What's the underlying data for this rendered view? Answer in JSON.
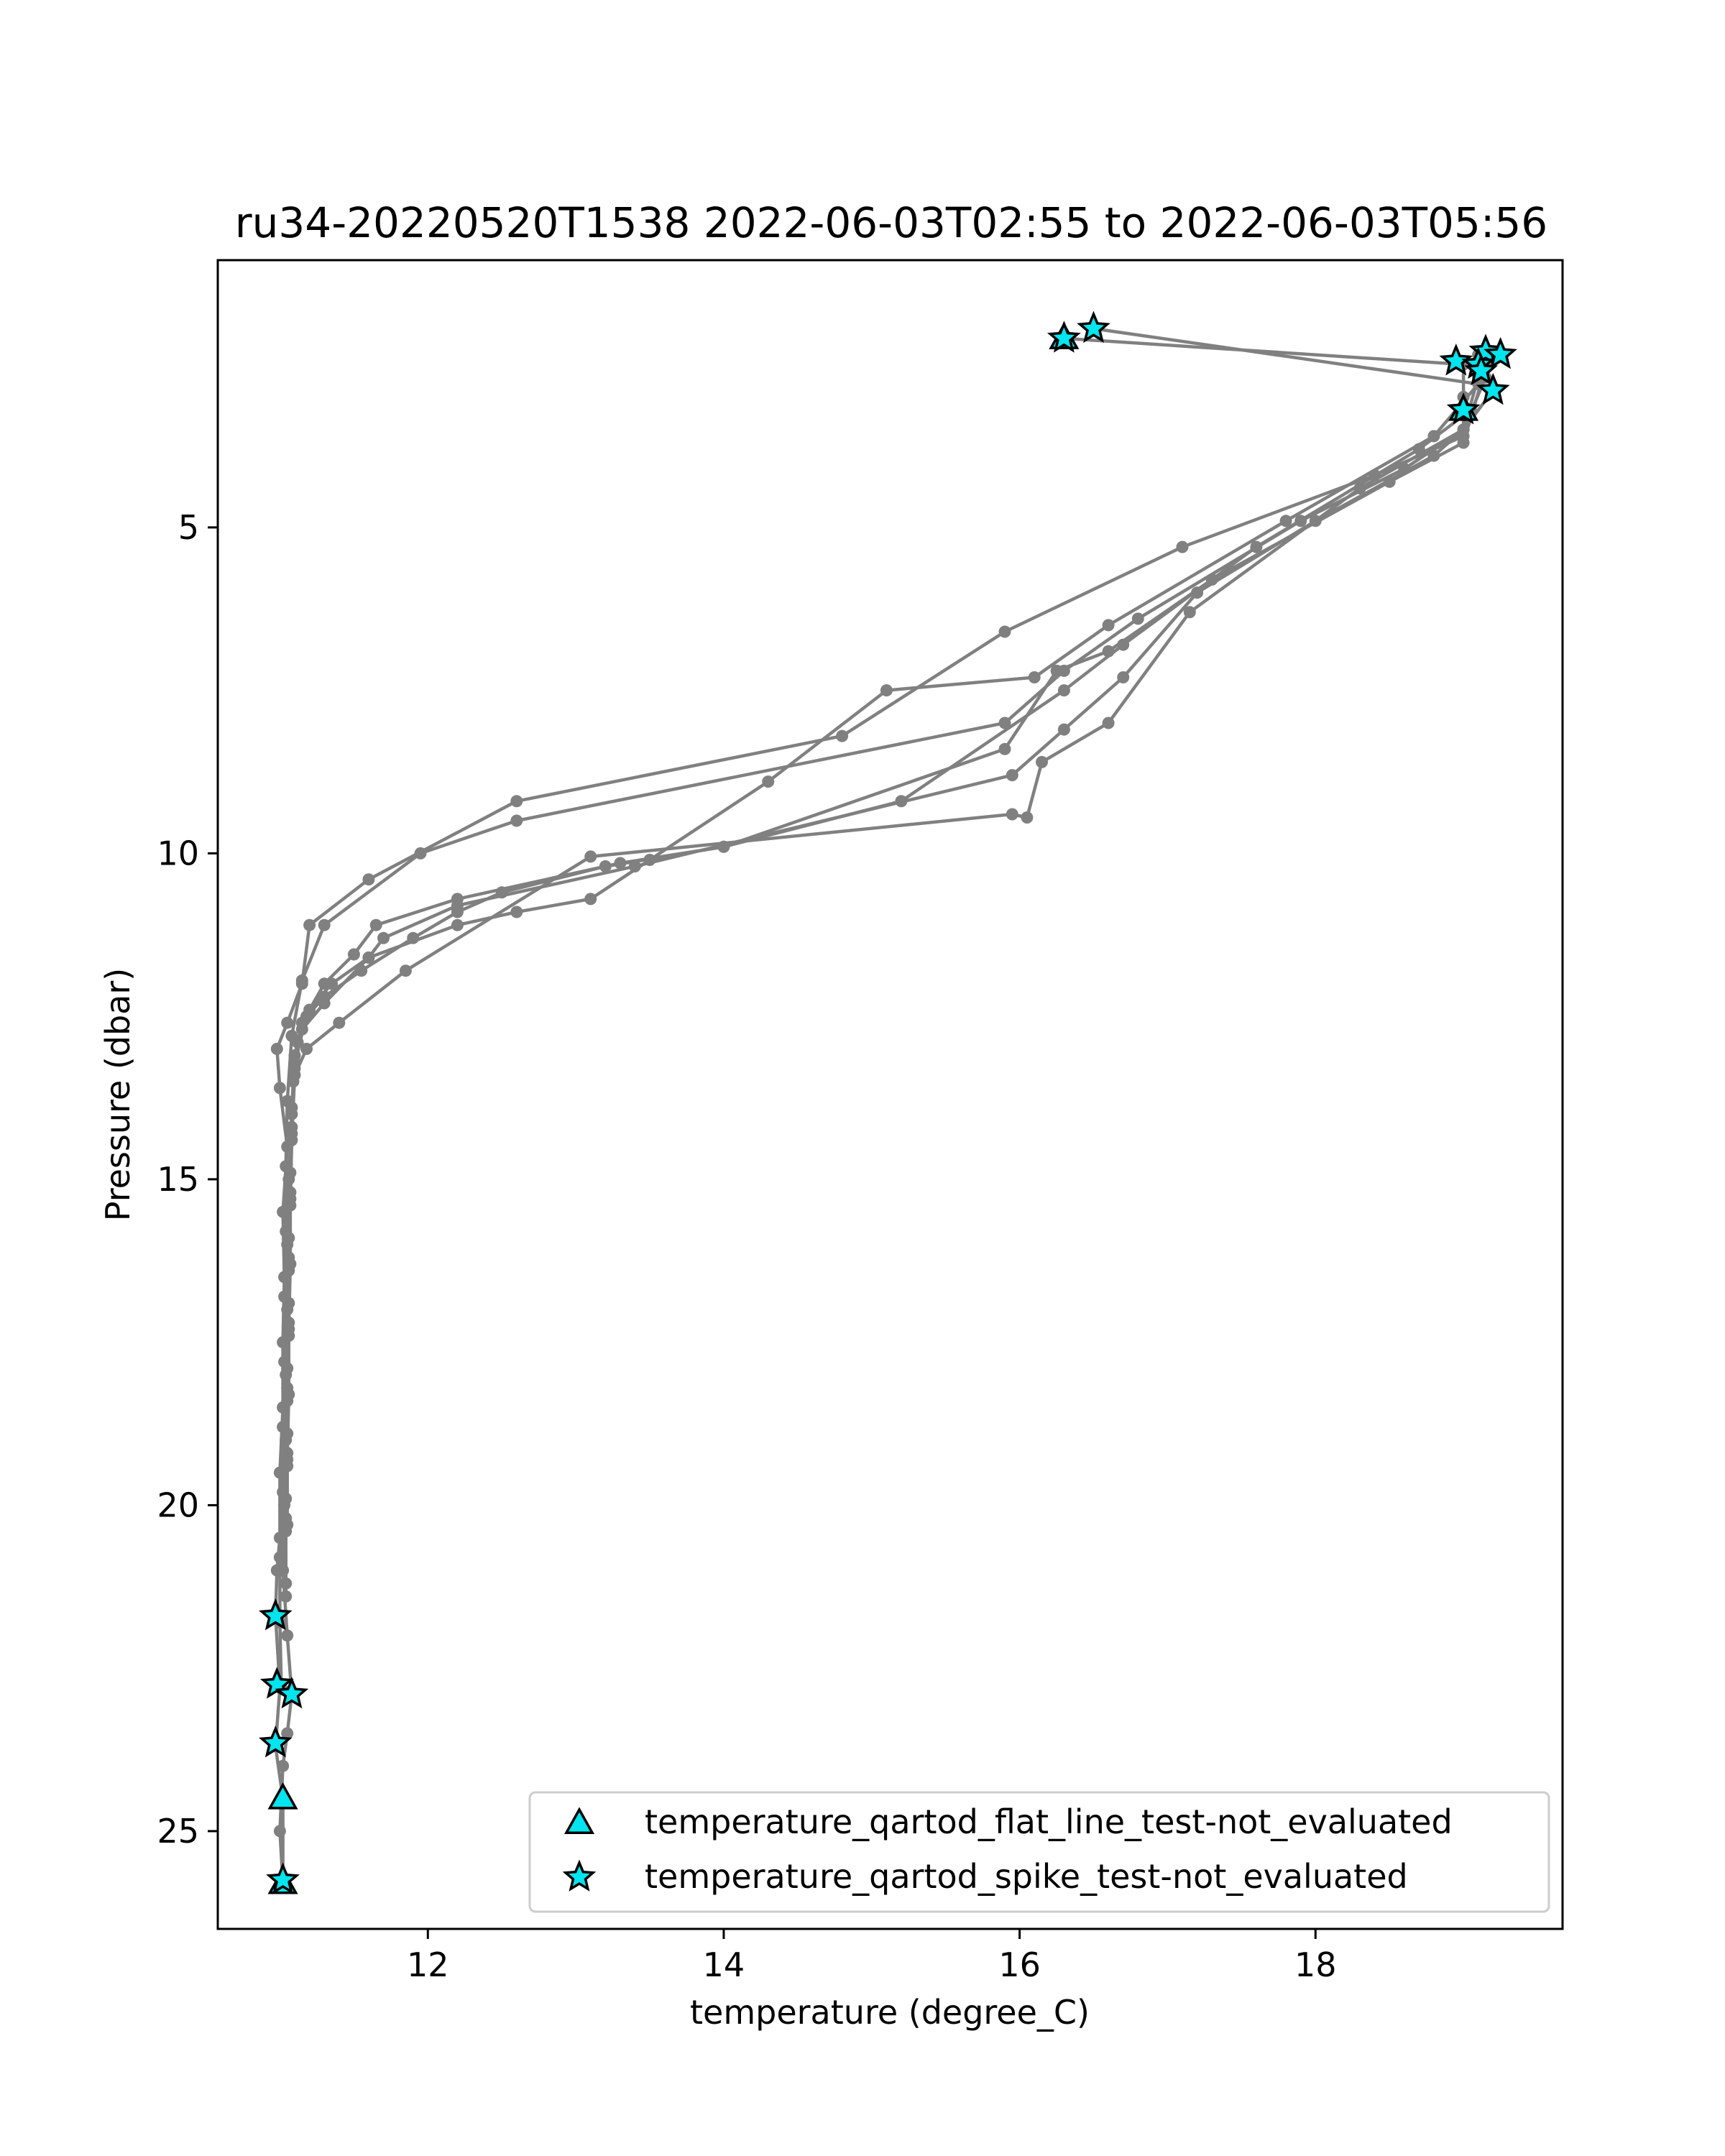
{
  "chart_data": {
    "type": "line",
    "title": "ru34-20220520T1538 2022-06-03T02:55 to 2022-06-03T05:56",
    "xlabel": "temperature (degree_C)",
    "ylabel": "Pressure (dbar)",
    "xlim": [
      10.58,
      19.67
    ],
    "ylim": [
      26.5,
      0.9
    ],
    "y_inverted": true,
    "grid": false,
    "x_ticks": [
      12,
      14,
      16,
      18
    ],
    "x_tick_labels": [
      "12",
      "14",
      "16",
      "18"
    ],
    "y_ticks": [
      5,
      10,
      15,
      20,
      25
    ],
    "y_tick_labels": [
      "5",
      "10",
      "15",
      "20",
      "25"
    ],
    "line_color": "#808080",
    "marker_color": "#808080",
    "legend_position": "lower right",
    "profiles": [
      [
        [
          16.3,
          2.1
        ],
        [
          19.0,
          2.5
        ],
        [
          19.0,
          3.0
        ],
        [
          19.0,
          3.6
        ],
        [
          18.4,
          4.2
        ],
        [
          17.1,
          5.3
        ],
        [
          15.9,
          6.6
        ],
        [
          14.8,
          8.2
        ],
        [
          12.6,
          9.2
        ],
        [
          11.6,
          10.4
        ],
        [
          11.2,
          11.1
        ],
        [
          11.15,
          12.0
        ],
        [
          11.05,
          12.6
        ],
        [
          10.98,
          13.0
        ],
        [
          11.0,
          13.6
        ],
        [
          11.05,
          14.5
        ],
        [
          11.02,
          15.5
        ],
        [
          11.03,
          16.5
        ],
        [
          11.02,
          17.5
        ],
        [
          11.02,
          18.5
        ],
        [
          11.0,
          19.5
        ],
        [
          11.0,
          20.5
        ],
        [
          10.98,
          21.0
        ],
        [
          10.97,
          21.7
        ],
        [
          11.0,
          22.8
        ],
        [
          10.97,
          23.7
        ],
        [
          11.02,
          24.5
        ],
        [
          11.02,
          25.8
        ]
      ],
      [
        [
          16.5,
          1.95
        ],
        [
          19.1,
          2.8
        ],
        [
          18.8,
          3.6
        ],
        [
          17.8,
          4.9
        ],
        [
          16.6,
          6.5
        ],
        [
          16.1,
          7.3
        ],
        [
          15.1,
          7.5
        ],
        [
          14.3,
          8.9
        ],
        [
          13.5,
          10.1
        ],
        [
          13.1,
          10.7
        ],
        [
          12.6,
          10.9
        ],
        [
          12.2,
          11.1
        ],
        [
          11.6,
          11.6
        ],
        [
          11.3,
          12.3
        ],
        [
          11.15,
          12.7
        ],
        [
          11.1,
          13.3
        ],
        [
          11.08,
          14.0
        ],
        [
          11.06,
          15.0
        ],
        [
          11.05,
          16.0
        ],
        [
          11.05,
          17.0
        ],
        [
          11.04,
          18.0
        ],
        [
          11.04,
          19.0
        ],
        [
          11.03,
          20.0
        ],
        [
          11.02,
          21.0
        ],
        [
          11.05,
          22.0
        ],
        [
          11.08,
          22.9
        ],
        [
          11.05,
          23.5
        ],
        [
          11.02,
          24.0
        ],
        [
          11.0,
          25.0
        ],
        [
          11.02,
          25.8
        ]
      ],
      [
        [
          19.2,
          2.3
        ],
        [
          19.1,
          2.7
        ],
        [
          19.0,
          3.5
        ],
        [
          18.6,
          4.1
        ],
        [
          17.9,
          4.9
        ],
        [
          16.8,
          6.4
        ],
        [
          16.3,
          7.2
        ],
        [
          15.9,
          8.0
        ],
        [
          12.6,
          9.5
        ],
        [
          11.95,
          10.0
        ],
        [
          11.3,
          11.1
        ],
        [
          11.15,
          11.95
        ],
        [
          11.08,
          12.8
        ],
        [
          11.05,
          13.8
        ],
        [
          11.04,
          14.8
        ],
        [
          11.04,
          15.8
        ],
        [
          11.03,
          16.8
        ],
        [
          11.03,
          17.8
        ],
        [
          11.02,
          18.8
        ],
        [
          11.02,
          19.8
        ],
        [
          11.0,
          20.8
        ],
        [
          11.0,
          21.8
        ],
        [
          11.01,
          22.8
        ]
      ],
      [
        [
          19.0,
          3.0
        ],
        [
          19.05,
          3.2
        ],
        [
          18.7,
          3.8
        ],
        [
          17.6,
          5.3
        ],
        [
          16.7,
          6.8
        ],
        [
          16.3,
          7.5
        ],
        [
          15.2,
          9.2
        ],
        [
          14.0,
          9.9
        ],
        [
          13.2,
          10.2
        ],
        [
          12.5,
          10.6
        ],
        [
          12.2,
          10.9
        ],
        [
          11.9,
          11.3
        ],
        [
          11.55,
          11.8
        ],
        [
          11.3,
          12.2
        ],
        [
          11.18,
          12.5
        ],
        [
          11.1,
          13.2
        ],
        [
          11.08,
          14.2
        ],
        [
          11.07,
          15.2
        ],
        [
          11.06,
          16.2
        ],
        [
          11.06,
          17.2
        ],
        [
          11.05,
          18.2
        ],
        [
          11.05,
          19.2
        ],
        [
          11.04,
          20.2
        ],
        [
          11.04,
          21.2
        ]
      ],
      [
        [
          19.2,
          2.4
        ],
        [
          19.15,
          2.7
        ],
        [
          19.0,
          3.5
        ],
        [
          18.8,
          3.9
        ],
        [
          18.0,
          4.9
        ],
        [
          17.2,
          6.0
        ],
        [
          16.7,
          7.3
        ],
        [
          16.3,
          8.1
        ],
        [
          15.95,
          8.8
        ],
        [
          13.4,
          10.2
        ],
        [
          12.2,
          10.8
        ],
        [
          11.7,
          11.3
        ],
        [
          11.6,
          11.6
        ],
        [
          11.35,
          12.0
        ],
        [
          11.2,
          12.4
        ],
        [
          11.12,
          12.9
        ],
        [
          11.09,
          13.5
        ],
        [
          11.08,
          14.3
        ],
        [
          11.07,
          15.3
        ],
        [
          11.07,
          16.3
        ],
        [
          11.06,
          17.3
        ],
        [
          11.06,
          18.3
        ],
        [
          11.05,
          19.3
        ],
        [
          11.05,
          20.3
        ]
      ],
      [
        [
          19.1,
          2.35
        ],
        [
          19.15,
          2.55
        ],
        [
          19.0,
          3.7
        ],
        [
          18.5,
          4.3
        ],
        [
          17.3,
          5.8
        ],
        [
          16.6,
          6.9
        ],
        [
          16.25,
          7.2
        ],
        [
          15.9,
          8.4
        ],
        [
          14.0,
          9.9
        ],
        [
          13.3,
          10.15
        ],
        [
          12.2,
          10.7
        ],
        [
          11.65,
          11.1
        ],
        [
          11.5,
          11.55
        ],
        [
          11.3,
          12.0
        ],
        [
          11.15,
          12.6
        ],
        [
          11.1,
          13.1
        ],
        [
          11.08,
          13.9
        ],
        [
          11.07,
          14.9
        ],
        [
          11.06,
          15.9
        ],
        [
          11.06,
          16.9
        ],
        [
          11.05,
          17.9
        ],
        [
          11.05,
          18.9
        ],
        [
          11.04,
          19.9
        ]
      ],
      [
        [
          19.2,
          2.9
        ],
        [
          19.0,
          3.5
        ],
        [
          18.3,
          4.4
        ],
        [
          17.15,
          6.3
        ],
        [
          16.6,
          8.0
        ],
        [
          16.15,
          8.6
        ],
        [
          16.05,
          9.45
        ],
        [
          15.95,
          9.4
        ],
        [
          13.1,
          10.05
        ],
        [
          11.85,
          11.8
        ],
        [
          11.4,
          12.6
        ],
        [
          11.18,
          13.0
        ],
        [
          11.1,
          13.4
        ],
        [
          11.08,
          14.4
        ],
        [
          11.07,
          15.4
        ],
        [
          11.06,
          16.4
        ],
        [
          11.06,
          17.4
        ],
        [
          11.05,
          18.4
        ],
        [
          11.05,
          19.4
        ],
        [
          11.04,
          20.4
        ],
        [
          11.04,
          21.4
        ]
      ]
    ],
    "series": [
      {
        "name": "temperature_qartod_flat_line_test-not_evaluated",
        "marker": "triangle",
        "face_color": "#00e5ee",
        "edge_color": "#000000",
        "points": [
          [
            16.3,
            2.1
          ],
          [
            19.0,
            3.2
          ],
          [
            11.02,
            24.5
          ],
          [
            11.02,
            25.8
          ]
        ]
      },
      {
        "name": "temperature_qartod_spike_test-not_evaluated",
        "marker": "star",
        "face_color": "#00e5ee",
        "edge_color": "#000000",
        "points": [
          [
            16.3,
            2.1
          ],
          [
            16.5,
            1.95
          ],
          [
            18.95,
            2.45
          ],
          [
            19.15,
            2.3
          ],
          [
            19.25,
            2.35
          ],
          [
            19.1,
            2.5
          ],
          [
            19.12,
            2.6
          ],
          [
            19.2,
            2.9
          ],
          [
            19.0,
            3.2
          ],
          [
            10.97,
            21.7
          ],
          [
            10.98,
            22.75
          ],
          [
            11.08,
            22.9
          ],
          [
            10.97,
            23.65
          ],
          [
            11.02,
            25.75
          ]
        ]
      }
    ]
  }
}
